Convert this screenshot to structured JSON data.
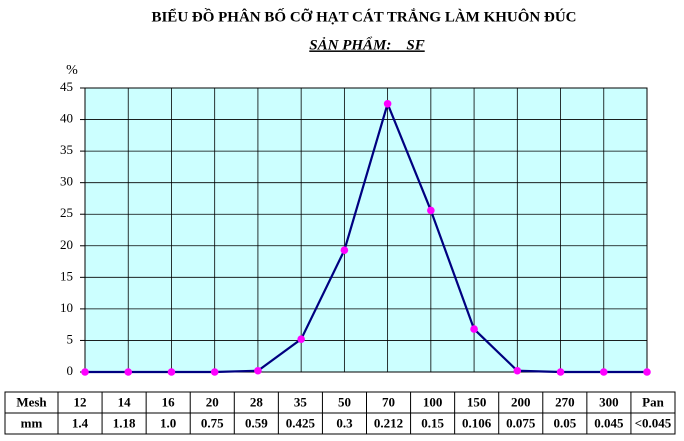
{
  "chart_data": {
    "type": "line",
    "title": "BIỂU ĐỒ PHÂN BỐ CỠ HẠT CÁT TRẮNG LÀM KHUÔN ĐÚC",
    "subtitle": "SẢN PHẨM:    SF",
    "y_label": "%",
    "categories": [
      "12",
      "14",
      "16",
      "20",
      "28",
      "35",
      "50",
      "70",
      "100",
      "150",
      "200",
      "270",
      "300",
      "Pan"
    ],
    "series": [
      {
        "color": "#000080",
        "marker_color": "#ff00ff",
        "values": [
          0,
          0,
          0,
          0,
          0.2,
          5.2,
          19.3,
          42.5,
          25.6,
          6.8,
          0.2,
          0,
          0,
          0
        ]
      }
    ],
    "ylim": [
      0,
      45
    ],
    "yticks": [
      0,
      5,
      10,
      15,
      20,
      25,
      30,
      35,
      40,
      45
    ],
    "grid": true,
    "table": {
      "row_headers": [
        "Mesh",
        "mm"
      ],
      "mm": [
        "1.4",
        "1.18",
        "1.0",
        "0.75",
        "0.59",
        "0.425",
        "0.3",
        "0.212",
        "0.15",
        "0.106",
        "0.075",
        "0.05",
        "0.045",
        "<0.045"
      ]
    }
  }
}
